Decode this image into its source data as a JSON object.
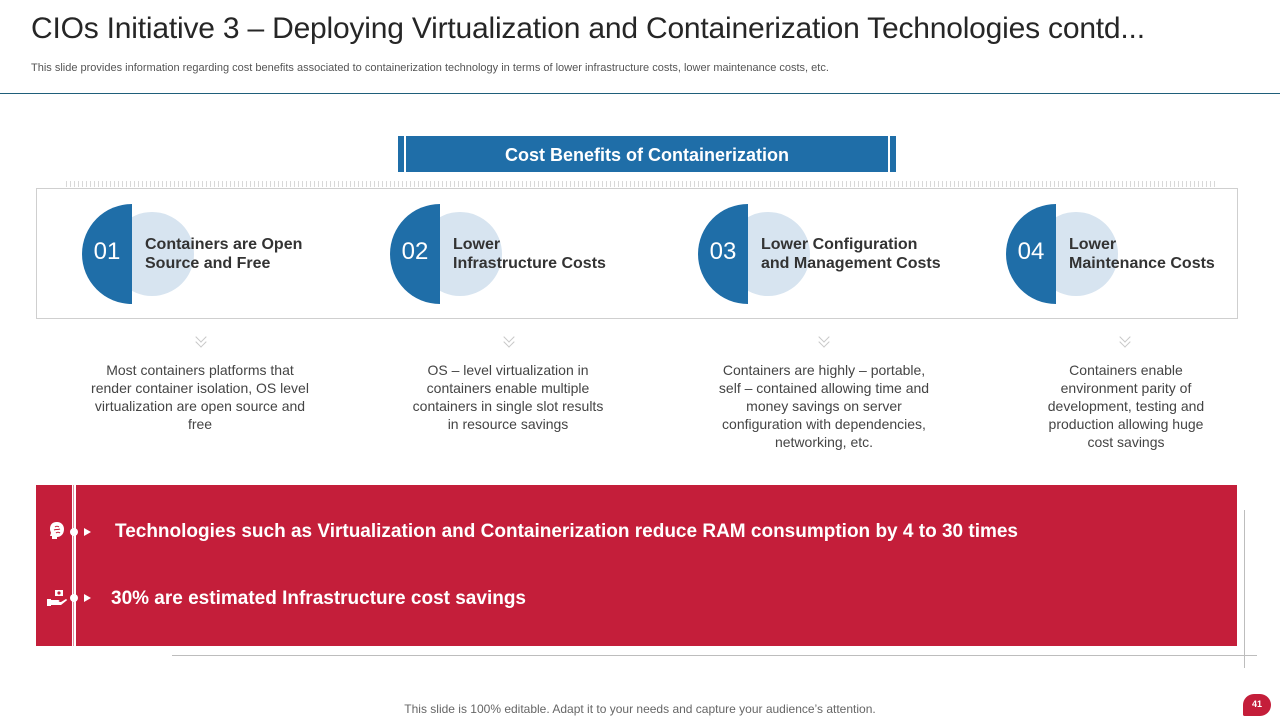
{
  "slide": {
    "title": "CIOs Initiative 3 – Deploying Virtualization and Containerization Technologies contd...",
    "subtitle": "This slide provides information regarding cost benefits associated to containerization technology in terms of lower infrastructure costs, lower maintenance costs, etc.",
    "section_title": "Cost Benefits of Containerization",
    "footer": "This slide is 100% editable. Adapt it to your needs and capture your audience’s attention.",
    "page_number": "41"
  },
  "benefits": [
    {
      "number": "01",
      "title_line1": "Containers are Open",
      "title_line2": "Source and Free",
      "description": "Most containers platforms that render container isolation, OS level virtualization are open source and free"
    },
    {
      "number": "02",
      "title_line1": "Lower",
      "title_line2": "Infrastructure Costs",
      "description": "OS – level virtualization in containers enable multiple containers in single slot results in resource savings"
    },
    {
      "number": "03",
      "title_line1": "Lower Configuration",
      "title_line2": "and Management Costs",
      "description": "Containers are highly – portable, self – contained allowing time and money savings on server configuration with dependencies, networking, etc."
    },
    {
      "number": "04",
      "title_line1": "Lower",
      "title_line2": "Maintenance Costs",
      "description": "Containers enable environment parity of development, testing and production allowing huge cost savings"
    }
  ],
  "highlights": [
    {
      "icon": "brain-head-icon",
      "text": "Technologies such as Virtualization and Containerization reduce RAM consumption by 4 to 30 times"
    },
    {
      "icon": "money-hand-icon",
      "text": "30% are estimated Infrastructure cost savings"
    }
  ],
  "colors": {
    "blue": "#1f6ea8",
    "light_blue": "#d7e4f0",
    "red": "#c41e3a"
  }
}
